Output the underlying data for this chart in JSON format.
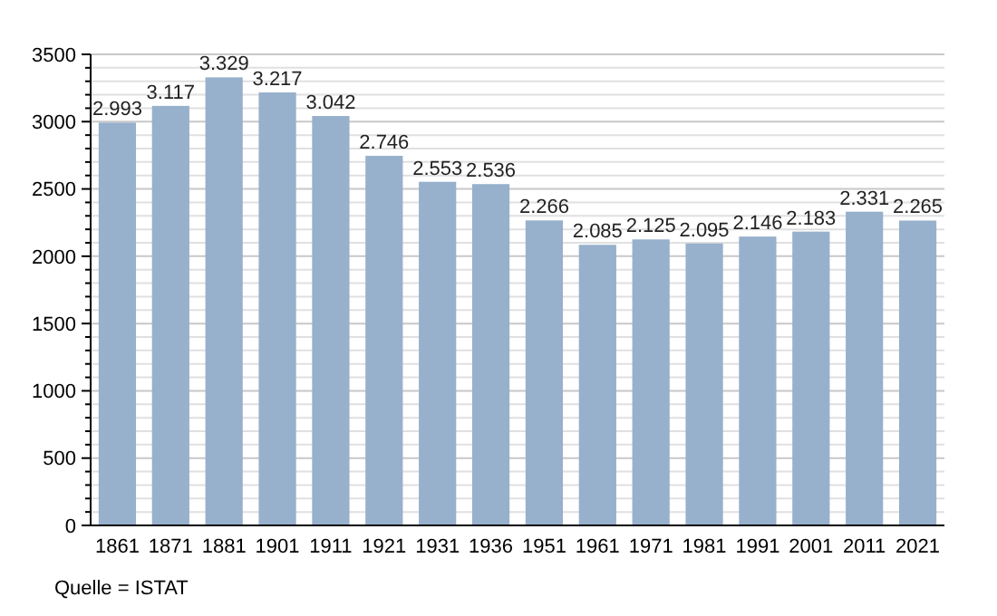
{
  "chart_data": {
    "type": "bar",
    "categories": [
      "1861",
      "1871",
      "1881",
      "1901",
      "1911",
      "1921",
      "1931",
      "1936",
      "1951",
      "1961",
      "1971",
      "1981",
      "1991",
      "2001",
      "2011",
      "2021"
    ],
    "values": [
      2993,
      3117,
      3329,
      3217,
      3042,
      2746,
      2553,
      2536,
      2266,
      2085,
      2125,
      2095,
      2146,
      2183,
      2331,
      2265
    ],
    "value_labels": [
      "2.993",
      "3.117",
      "3.329",
      "3.217",
      "3.042",
      "2.746",
      "2.553",
      "2.536",
      "2.266",
      "2.085",
      "2.125",
      "2.095",
      "2.146",
      "2.183",
      "2.331",
      "2.265"
    ],
    "color": "#97b0cc",
    "ylim": [
      0,
      3500
    ],
    "yticks": [
      0,
      {
        "value": 100,
        "label": null
      },
      {
        "value": 200,
        "label": null
      },
      {
        "value": 300,
        "label": null
      },
      {
        "value": 400,
        "label": null
      },
      500,
      {
        "value": 600,
        "label": null
      },
      {
        "value": 700,
        "label": null
      },
      {
        "value": 800,
        "label": null
      },
      {
        "value": 900,
        "label": null
      },
      1000,
      {
        "value": 1100,
        "label": null
      },
      {
        "value": 1200,
        "label": null
      },
      {
        "value": 1300,
        "label": null
      },
      {
        "value": 1400,
        "label": null
      },
      1500,
      {
        "value": 1600,
        "label": null
      },
      {
        "value": 1700,
        "label": null
      },
      {
        "value": 1800,
        "label": null
      },
      {
        "value": 1900,
        "label": null
      },
      2000,
      {
        "value": 2100,
        "label": null
      },
      {
        "value": 2200,
        "label": null
      },
      {
        "value": 2300,
        "label": null
      },
      {
        "value": 2400,
        "label": null
      },
      2500,
      {
        "value": 2600,
        "label": null
      },
      {
        "value": 2700,
        "label": null
      },
      {
        "value": 2800,
        "label": null
      },
      {
        "value": 2900,
        "label": null
      },
      3000,
      {
        "value": 3100,
        "label": null
      },
      {
        "value": 3200,
        "label": null
      },
      {
        "value": 3300,
        "label": null
      },
      {
        "value": 3400,
        "label": null
      },
      3500
    ],
    "grid": "y",
    "annotations": [
      "Quelle = ISTAT"
    ]
  }
}
